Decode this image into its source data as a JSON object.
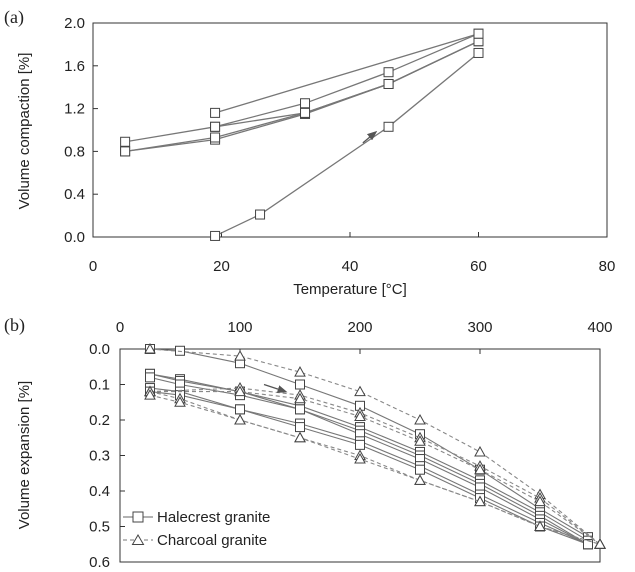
{
  "chart_data": [
    {
      "panel": "(a)",
      "type": "line",
      "xlabel": "Temperature [°C]",
      "ylabel": "Volume compaction [%]",
      "xlim": [
        0,
        80
      ],
      "ylim": [
        0.0,
        2.0
      ],
      "xticks": [
        "0",
        "20",
        "40",
        "60",
        "80"
      ],
      "yticks": [
        "0.0",
        "0.4",
        "0.8",
        "1.2",
        "1.6",
        "2.0"
      ],
      "grid": false,
      "marker": "square",
      "arrow": {
        "from": [
          42,
          0.88
        ],
        "to": [
          44,
          0.98
        ]
      },
      "series": [
        {
          "x": [
            19,
            26,
            46,
            60
          ],
          "y": [
            0.01,
            0.21,
            1.03,
            1.72
          ]
        },
        {
          "x": [
            5,
            19,
            33,
            46,
            60
          ],
          "y": [
            0.8,
            0.91,
            1.15,
            1.43,
            1.83
          ]
        },
        {
          "x": [
            5,
            19,
            33,
            46,
            60
          ],
          "y": [
            0.8,
            0.93,
            1.16,
            1.43,
            1.83
          ]
        },
        {
          "x": [
            5,
            19,
            33,
            46,
            60
          ],
          "y": [
            0.89,
            1.03,
            1.16,
            1.43,
            1.83
          ]
        },
        {
          "x": [
            19,
            33,
            46,
            60
          ],
          "y": [
            1.03,
            1.25,
            1.54,
            1.9
          ]
        },
        {
          "x": [
            19,
            60
          ],
          "y": [
            1.16,
            1.9
          ]
        }
      ]
    },
    {
      "panel": "(b)",
      "type": "line",
      "xlabel": "",
      "ylabel": "Volume expansion [%]",
      "xlim": [
        0,
        400
      ],
      "ylim": [
        0.0,
        0.6
      ],
      "y_inverted": true,
      "x_axis_position": "top",
      "xticks": [
        "0",
        "100",
        "200",
        "300",
        "400"
      ],
      "yticks": [
        "0.0",
        "0.1",
        "0.2",
        "0.3",
        "0.4",
        "0.5",
        "0.6"
      ],
      "grid": false,
      "arrow": {
        "from": [
          120,
          0.1
        ],
        "to": [
          138,
          0.12
        ]
      },
      "legend": {
        "position": "bottom-left",
        "entries": [
          {
            "name": "Halecrest granite",
            "marker": "square",
            "line": "solid"
          },
          {
            "name": "Charcoal granite",
            "marker": "triangle",
            "line": "dashed"
          }
        ]
      },
      "series": [
        {
          "group": "Halecrest granite",
          "x": [
            25,
            50,
            100,
            150,
            200,
            250,
            300,
            350,
            390
          ],
          "y": [
            0.0,
            0.005,
            0.04,
            0.1,
            0.16,
            0.24,
            0.34,
            0.45,
            0.53
          ]
        },
        {
          "group": "Halecrest granite",
          "x": [
            25,
            50,
            100,
            150,
            200,
            250,
            300,
            350,
            390
          ],
          "y": [
            0.07,
            0.085,
            0.12,
            0.16,
            0.22,
            0.29,
            0.37,
            0.46,
            0.54
          ]
        },
        {
          "group": "Halecrest granite",
          "x": [
            25,
            50,
            100,
            150,
            200,
            250,
            300,
            350,
            390
          ],
          "y": [
            0.07,
            0.09,
            0.12,
            0.17,
            0.23,
            0.3,
            0.38,
            0.47,
            0.55
          ]
        },
        {
          "group": "Halecrest granite",
          "x": [
            25,
            50,
            100,
            150,
            200,
            250,
            300,
            350,
            390
          ],
          "y": [
            0.08,
            0.1,
            0.13,
            0.17,
            0.24,
            0.31,
            0.39,
            0.48,
            0.55
          ]
        },
        {
          "group": "Halecrest granite",
          "x": [
            25,
            50,
            100,
            150,
            200,
            250,
            300,
            350,
            390
          ],
          "y": [
            0.11,
            0.12,
            0.17,
            0.21,
            0.26,
            0.33,
            0.41,
            0.49,
            0.55
          ]
        },
        {
          "group": "Halecrest granite",
          "x": [
            25,
            50,
            100,
            150,
            200,
            250,
            300,
            350,
            390
          ],
          "y": [
            0.12,
            0.13,
            0.17,
            0.22,
            0.27,
            0.34,
            0.42,
            0.5,
            0.55
          ]
        },
        {
          "group": "Charcoal granite",
          "x": [
            25,
            100,
            150,
            200,
            250,
            300,
            350,
            400
          ],
          "y": [
            0.0,
            0.02,
            0.065,
            0.12,
            0.2,
            0.29,
            0.41,
            0.55
          ]
        },
        {
          "group": "Charcoal granite",
          "x": [
            25,
            100,
            150,
            200,
            250,
            300,
            350,
            400
          ],
          "y": [
            0.12,
            0.11,
            0.13,
            0.18,
            0.25,
            0.33,
            0.42,
            0.55
          ]
        },
        {
          "group": "Charcoal granite",
          "x": [
            25,
            100,
            150,
            200,
            250,
            300,
            350,
            400
          ],
          "y": [
            0.12,
            0.12,
            0.14,
            0.19,
            0.26,
            0.34,
            0.43,
            0.55
          ]
        },
        {
          "group": "Charcoal granite",
          "x": [
            25,
            50,
            100,
            150,
            200,
            250,
            300,
            350,
            400
          ],
          "y": [
            0.12,
            0.14,
            0.2,
            0.25,
            0.3,
            0.37,
            0.43,
            0.5,
            0.55
          ]
        },
        {
          "group": "Charcoal granite",
          "x": [
            25,
            50,
            100,
            150,
            200,
            250,
            300,
            350,
            400
          ],
          "y": [
            0.13,
            0.15,
            0.2,
            0.25,
            0.31,
            0.37,
            0.43,
            0.5,
            0.55
          ]
        }
      ]
    }
  ]
}
